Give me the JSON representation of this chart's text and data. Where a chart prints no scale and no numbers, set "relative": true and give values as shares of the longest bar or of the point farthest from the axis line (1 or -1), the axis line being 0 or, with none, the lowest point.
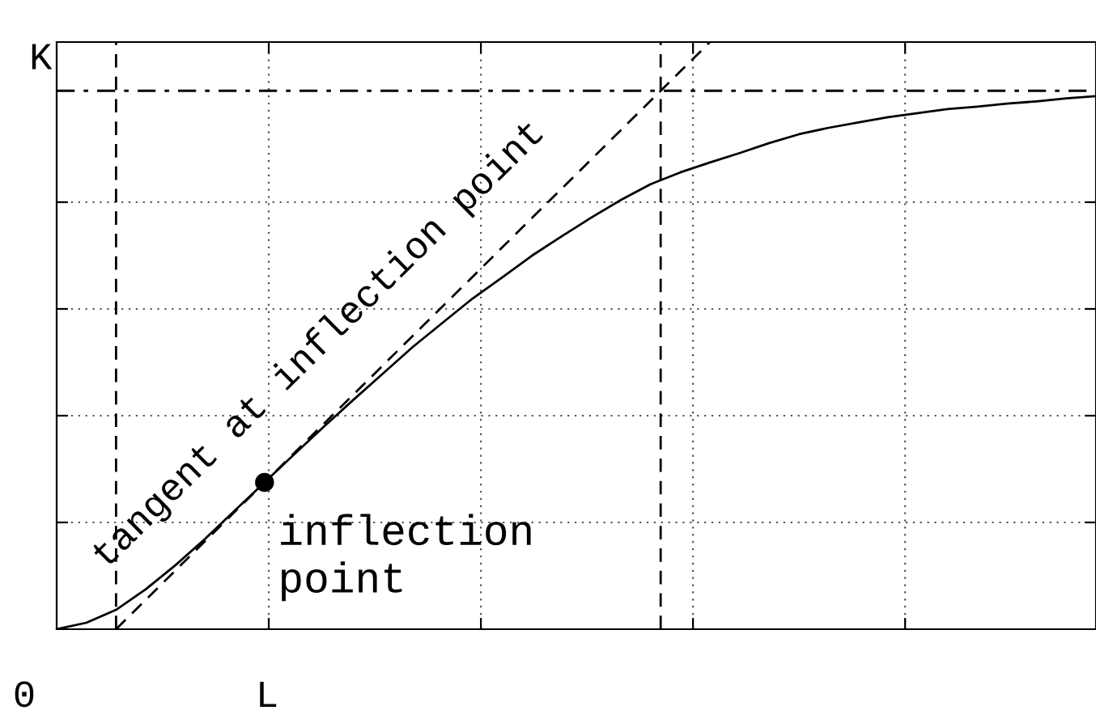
{
  "chart_data": {
    "type": "line",
    "relative": true,
    "categories": [
      null,
      null,
      null,
      null,
      null,
      null,
      null,
      null,
      null,
      null,
      null,
      null,
      null,
      null,
      null,
      null,
      null,
      null,
      null,
      null,
      null,
      null,
      null,
      null,
      null,
      null,
      null,
      null,
      null,
      null,
      null,
      null,
      null,
      null,
      null,
      null
    ],
    "series": [
      {
        "color": "#000000",
        "line_style": "solid",
        "values": [
          0,
          0.011,
          0.033,
          0.068,
          0.109,
          0.154,
          0.202,
          0.25,
          0.298,
          0.345,
          0.391,
          0.436,
          0.481,
          0.522,
          0.563,
          0.599,
          0.636,
          0.669,
          0.701,
          0.731,
          0.758,
          0.778,
          0.795,
          0.811,
          0.828,
          0.843,
          0.854,
          0.863,
          0.872,
          0.879,
          0.886,
          0.89,
          0.895,
          0.899,
          0.904,
          0.908
        ]
      },
      {
        "color": "#000000",
        "line_style": "dashed",
        "values": [
          null,
          null,
          0,
          0.05,
          0.1,
          0.15,
          0.2,
          0.25,
          0.3,
          0.35,
          0.4,
          0.45,
          0.5,
          0.55,
          0.6,
          0.65,
          0.7,
          0.75,
          0.8,
          0.85,
          0.9,
          0.95,
          1,
          null,
          null,
          null,
          null,
          null,
          null,
          null,
          null,
          null,
          null,
          null,
          null,
          null
        ]
      }
    ],
    "ref_lines": [
      {
        "axis": "y",
        "value": 0.917,
        "label": "K",
        "line_style": "dashdot",
        "color": "#000000"
      }
    ],
    "annotations": [
      "inflection\npoint",
      "tangent at inflection point",
      "0",
      "L"
    ],
    "grid": true
  }
}
